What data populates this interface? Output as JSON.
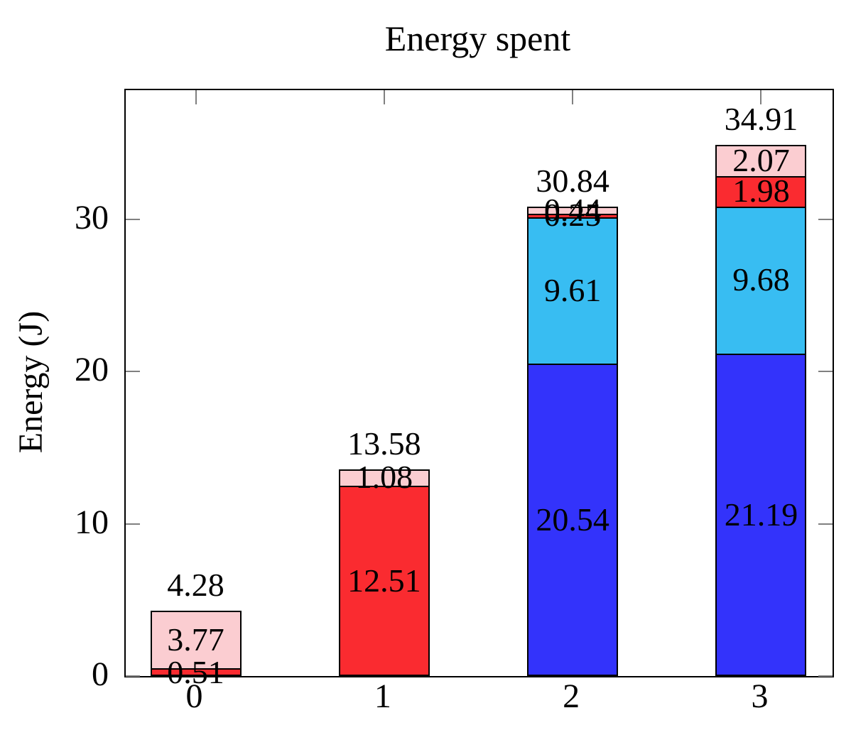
{
  "chart_data": {
    "type": "bar",
    "stacked": true,
    "title": "Energy spent",
    "ylabel": "Energy (J)",
    "xlabel": "",
    "categories": [
      "0",
      "1",
      "2",
      "3"
    ],
    "series": [
      {
        "name": "blue-segment",
        "color": "#3333FB",
        "values": [
          0,
          0,
          20.54,
          21.19
        ],
        "labels": [
          "",
          "",
          "20.54",
          "21.19"
        ]
      },
      {
        "name": "cyan-segment",
        "color": "#38BDF2",
        "values": [
          0,
          0,
          9.61,
          9.68
        ],
        "labels": [
          "",
          "",
          "9.61",
          "9.68"
        ]
      },
      {
        "name": "red-segment",
        "color": "#FA2B30",
        "values": [
          0.51,
          12.51,
          0.25,
          1.98
        ],
        "labels": [
          "0.51",
          "12.51",
          "0.25",
          "1.98"
        ]
      },
      {
        "name": "pink-segment",
        "color": "#FBCDD1",
        "values": [
          3.77,
          1.08,
          0.44,
          2.07
        ],
        "labels": [
          "3.77",
          "1.08",
          "0.44",
          "2.07"
        ]
      }
    ],
    "totals": [
      "4.28",
      "13.58",
      "30.84",
      "34.91"
    ],
    "yticks": [
      "0",
      "10",
      "20",
      "30"
    ],
    "ylim": [
      0,
      38.5
    ],
    "grid": false,
    "legend": "none",
    "frame_color": "#000000",
    "tick_color": "#808080",
    "bar_edge_color": "#000000"
  }
}
